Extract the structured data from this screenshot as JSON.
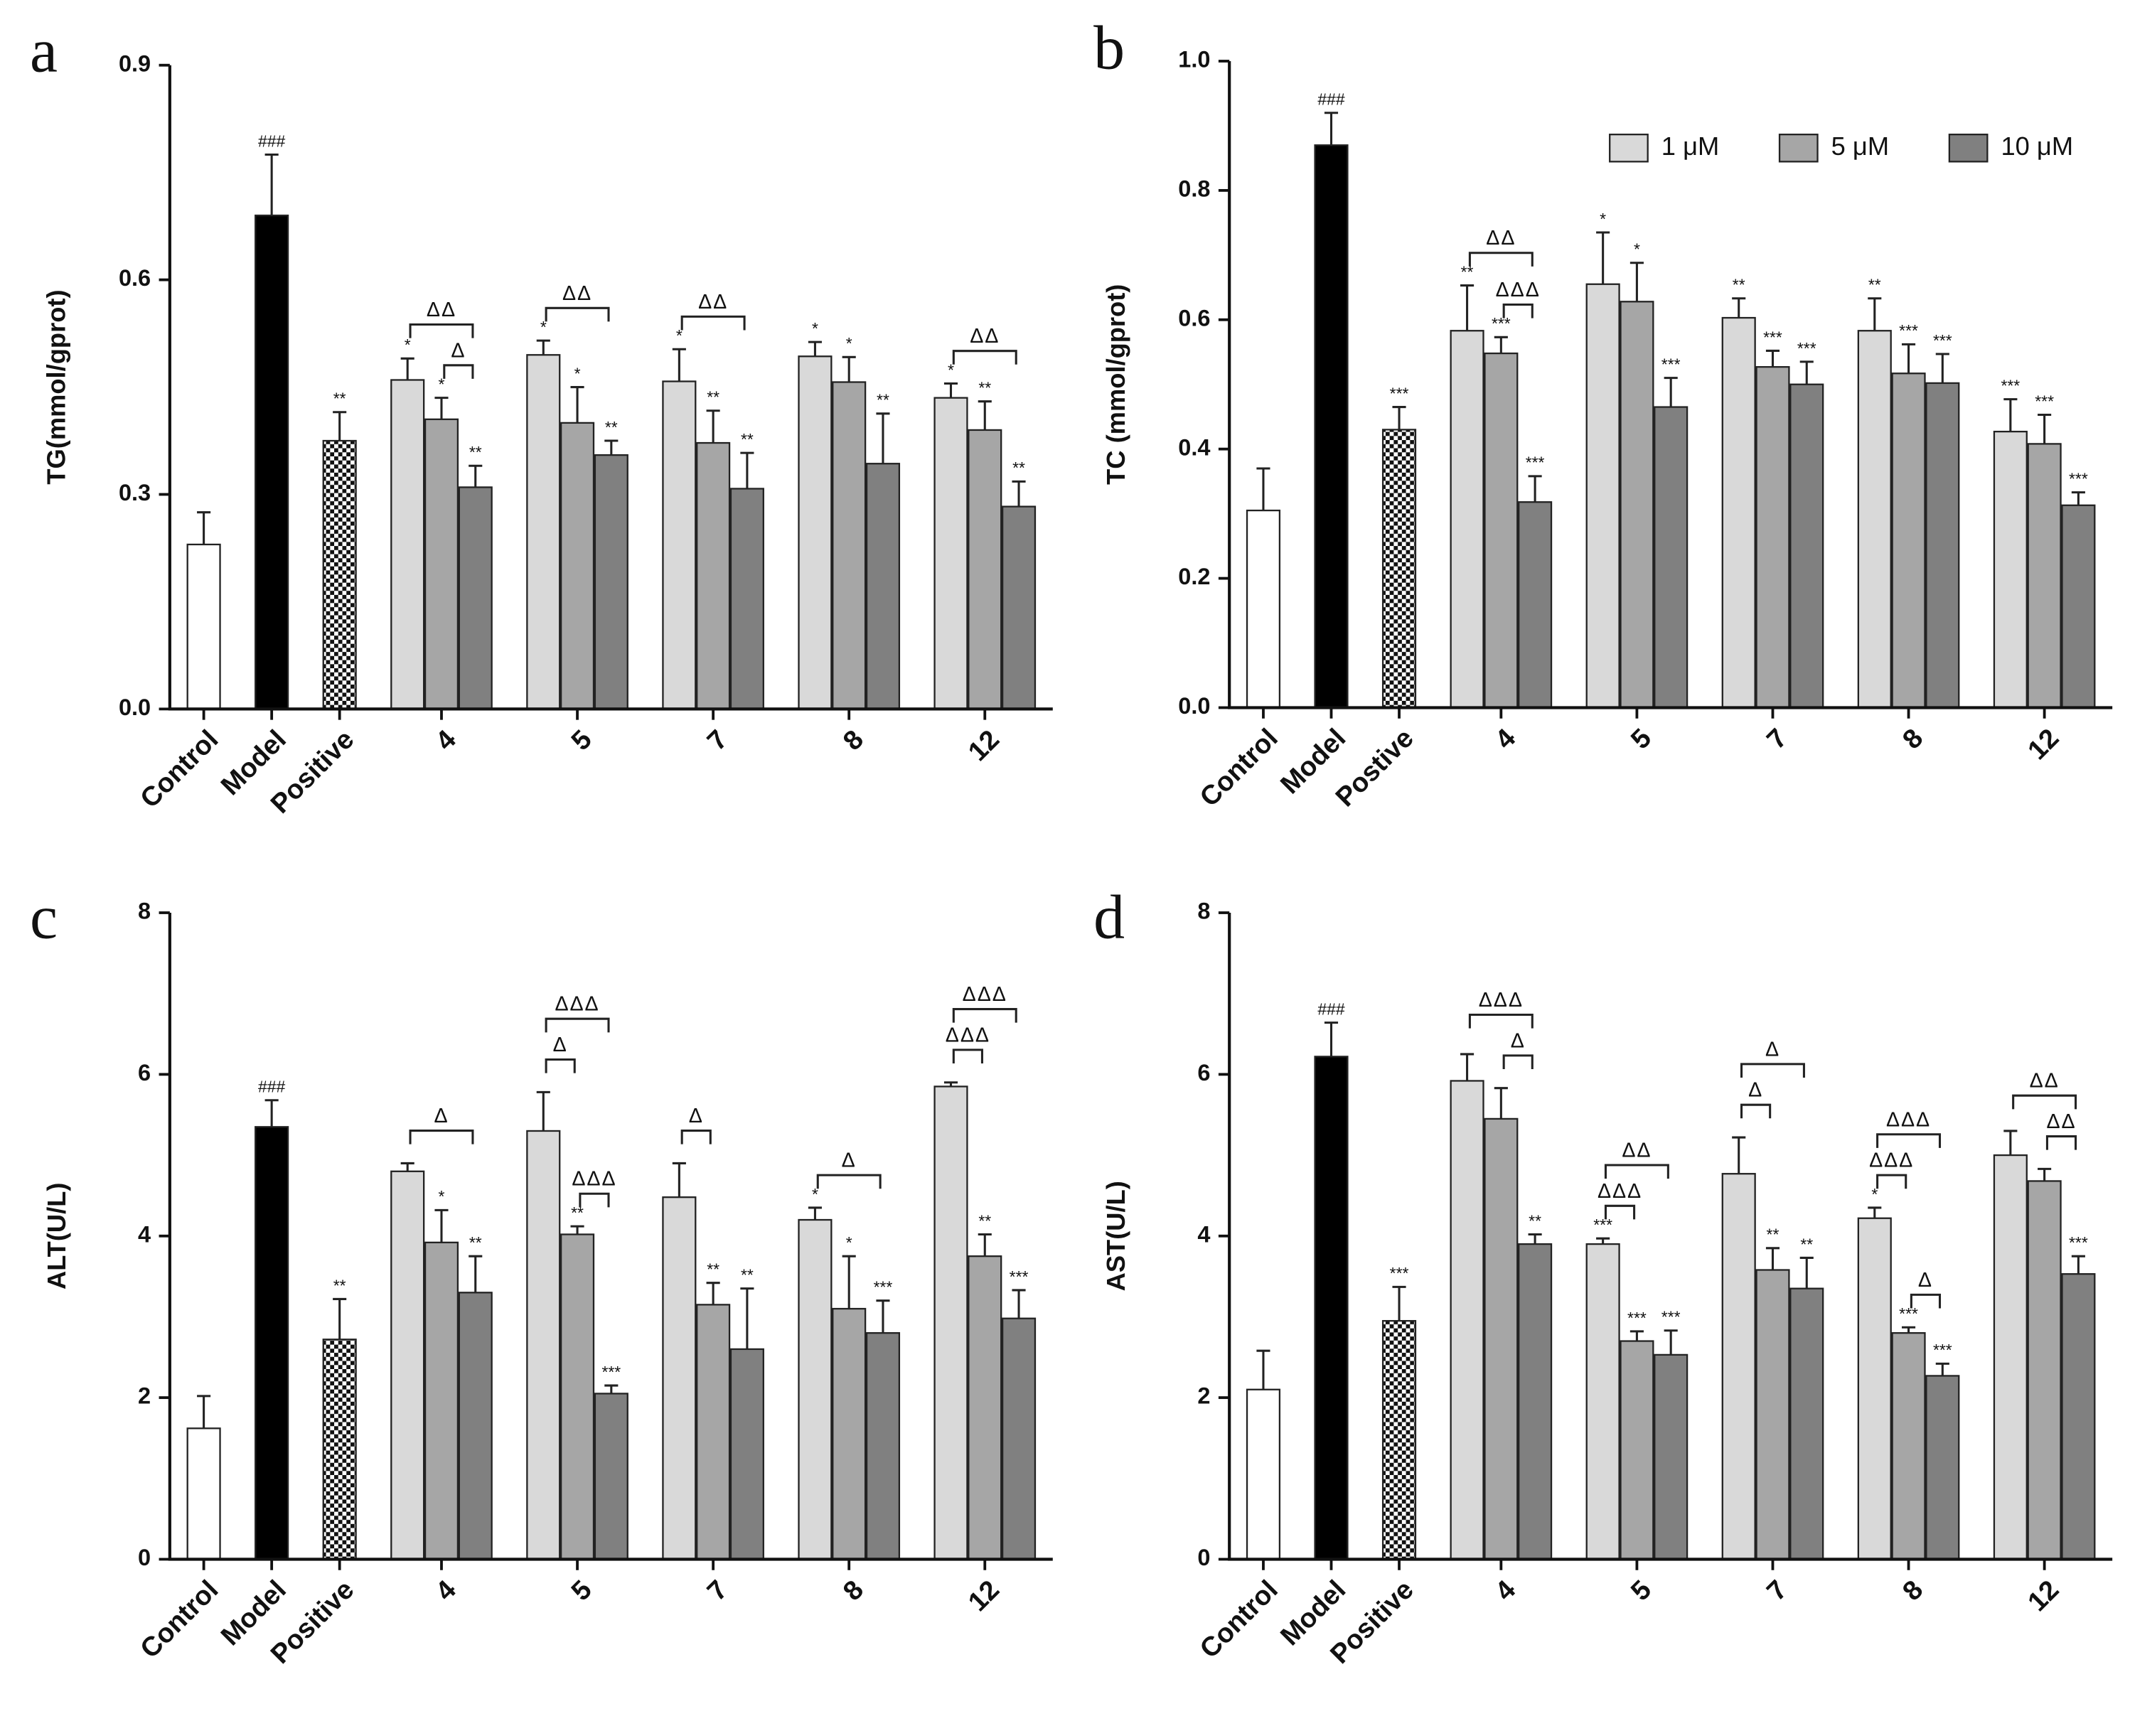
{
  "chart_data": [
    {
      "type": "bar",
      "panel_label": "a",
      "ylabel": "TG(mmol/gprot)",
      "ylim": [
        0,
        0.9
      ],
      "yticks": [
        {
          "value": 0,
          "label": "0.0"
        },
        0.3,
        0.6,
        0.9
      ],
      "categories": [
        "Control",
        "Model",
        "Positive",
        "4",
        "5",
        "7",
        "8",
        "12"
      ],
      "values": [
        0.23,
        0.69,
        0.375,
        null,
        null,
        null,
        null,
        null
      ],
      "errors": [
        0.045,
        0.085,
        0.04,
        null,
        null,
        null,
        null,
        null
      ],
      "annotations": [
        null,
        "###",
        "**",
        null,
        null,
        null,
        null,
        null
      ],
      "colors": [
        "#ffffff",
        "#000000",
        "checker",
        null,
        null,
        null,
        null,
        null
      ],
      "series": [
        {
          "name": "1 μM",
          "color": "#d9d9d9",
          "values": [
            null,
            null,
            null,
            0.46,
            0.495,
            0.458,
            0.493,
            0.435
          ],
          "errors": [
            null,
            null,
            null,
            0.03,
            0.02,
            0.045,
            0.02,
            0.02
          ],
          "annotations": [
            null,
            null,
            null,
            "*",
            "*",
            "*",
            "*",
            "*"
          ]
        },
        {
          "name": "5 μM",
          "color": "#a6a6a6",
          "values": [
            null,
            null,
            null,
            0.405,
            0.4,
            0.372,
            0.457,
            0.39
          ],
          "errors": [
            null,
            null,
            null,
            0.03,
            0.05,
            0.045,
            0.035,
            0.04
          ],
          "annotations": [
            null,
            null,
            null,
            "*",
            "*",
            "**",
            "*",
            "**"
          ]
        },
        {
          "name": "10 μM",
          "color": "#808080",
          "values": [
            null,
            null,
            null,
            0.31,
            0.355,
            0.308,
            0.343,
            0.283
          ],
          "errors": [
            null,
            null,
            null,
            0.03,
            0.02,
            0.05,
            0.07,
            0.035
          ],
          "annotations": [
            null,
            null,
            null,
            "**",
            "**",
            "**",
            "**",
            "**"
          ]
        }
      ],
      "brackets": [
        {
          "category": "4",
          "from": "5 μM",
          "to": "10 μM",
          "label": "Δ"
        },
        {
          "category": "4",
          "from": "1 μM",
          "to": "10 μM",
          "label": "ΔΔ"
        },
        {
          "category": "5",
          "from": "1 μM",
          "to": "10 μM",
          "label": "ΔΔ"
        },
        {
          "category": "7",
          "from": "1 μM",
          "to": "10 μM",
          "label": "ΔΔ"
        },
        {
          "category": "12",
          "from": "1 μM",
          "to": "10 μM",
          "label": "ΔΔ"
        }
      ]
    },
    {
      "type": "bar",
      "panel_label": "b",
      "ylabel": "TC (mmol/gprot)",
      "ylim": [
        0,
        1.0
      ],
      "yticks": [
        {
          "value": 0,
          "label": "0.0"
        },
        0.2,
        0.4,
        0.6,
        0.8,
        {
          "value": 1.0,
          "label": "1.0"
        }
      ],
      "legend": "top-right",
      "categories": [
        "Control",
        "Model",
        "Postive",
        "4",
        "5",
        "7",
        "8",
        "12"
      ],
      "values": [
        0.305,
        0.87,
        0.43,
        null,
        null,
        null,
        null,
        null
      ],
      "errors": [
        0.065,
        0.05,
        0.035,
        null,
        null,
        null,
        null,
        null
      ],
      "annotations": [
        null,
        "###",
        "***",
        null,
        null,
        null,
        null,
        null
      ],
      "colors": [
        "#ffffff",
        "#000000",
        "checker",
        null,
        null,
        null,
        null,
        null
      ],
      "series": [
        {
          "name": "1 μM",
          "color": "#d9d9d9",
          "values": [
            null,
            null,
            null,
            0.583,
            0.655,
            0.603,
            0.583,
            0.427
          ],
          "errors": [
            null,
            null,
            null,
            0.07,
            0.08,
            0.03,
            0.05,
            0.05
          ],
          "annotations": [
            null,
            null,
            null,
            "**",
            "*",
            "**",
            "**",
            "***"
          ]
        },
        {
          "name": "5 μM",
          "color": "#a6a6a6",
          "values": [
            null,
            null,
            null,
            0.548,
            0.628,
            0.527,
            0.517,
            0.408
          ],
          "errors": [
            null,
            null,
            null,
            0.025,
            0.06,
            0.025,
            0.045,
            0.045
          ],
          "annotations": [
            null,
            null,
            null,
            "***",
            "*",
            "***",
            "***",
            "***"
          ]
        },
        {
          "name": "10 μM",
          "color": "#808080",
          "values": [
            null,
            null,
            null,
            0.318,
            0.465,
            0.5,
            0.502,
            0.313
          ],
          "errors": [
            null,
            null,
            null,
            0.04,
            0.045,
            0.035,
            0.045,
            0.02
          ],
          "annotations": [
            null,
            null,
            null,
            "***",
            "***",
            "***",
            "***",
            "***"
          ]
        }
      ],
      "brackets": [
        {
          "category": "4",
          "from": "5 μM",
          "to": "10 μM",
          "label": "ΔΔΔ"
        },
        {
          "category": "4",
          "from": "1 μM",
          "to": "10 μM",
          "label": "ΔΔ"
        }
      ]
    },
    {
      "type": "bar",
      "panel_label": "c",
      "ylabel": "ALT(U/L)",
      "ylim": [
        0,
        8
      ],
      "yticks": [
        0,
        2,
        4,
        6,
        8
      ],
      "categories": [
        "Control",
        "Model",
        "Positive",
        "4",
        "5",
        "7",
        "8",
        "12"
      ],
      "values": [
        1.62,
        5.35,
        2.72,
        null,
        null,
        null,
        null,
        null
      ],
      "errors": [
        0.4,
        0.33,
        0.5,
        null,
        null,
        null,
        null,
        null
      ],
      "annotations": [
        null,
        "###",
        "**",
        null,
        null,
        null,
        null,
        null
      ],
      "colors": [
        "#ffffff",
        "#000000",
        "checker",
        null,
        null,
        null,
        null,
        null
      ],
      "series": [
        {
          "name": "1 μM",
          "color": "#d9d9d9",
          "values": [
            null,
            null,
            null,
            4.8,
            5.3,
            4.48,
            4.2,
            5.85
          ],
          "errors": [
            null,
            null,
            null,
            0.1,
            0.48,
            0.42,
            0.15,
            0.05
          ],
          "annotations": [
            null,
            null,
            null,
            null,
            null,
            null,
            "*",
            null
          ]
        },
        {
          "name": "5 μM",
          "color": "#a6a6a6",
          "values": [
            null,
            null,
            null,
            3.92,
            4.02,
            3.15,
            3.1,
            3.75
          ],
          "errors": [
            null,
            null,
            null,
            0.4,
            0.1,
            0.27,
            0.65,
            0.27
          ],
          "annotations": [
            null,
            null,
            null,
            "*",
            "**",
            "**",
            "*",
            "**"
          ]
        },
        {
          "name": "10 μM",
          "color": "#808080",
          "values": [
            null,
            null,
            null,
            3.3,
            2.05,
            2.6,
            2.8,
            2.98
          ],
          "errors": [
            null,
            null,
            null,
            0.45,
            0.1,
            0.75,
            0.4,
            0.35
          ],
          "annotations": [
            null,
            null,
            null,
            "**",
            "***",
            "**",
            "***",
            "***"
          ]
        }
      ],
      "brackets": [
        {
          "category": "4",
          "from": "1 μM",
          "to": "10 μM",
          "label": "Δ"
        },
        {
          "category": "5",
          "from": "5 μM",
          "to": "10 μM",
          "label": "ΔΔΔ"
        },
        {
          "category": "5",
          "from": "1 μM",
          "to": "5 μM",
          "label": "Δ"
        },
        {
          "category": "5",
          "from": "1 μM",
          "to": "10 μM",
          "label": "ΔΔΔ"
        },
        {
          "category": "7",
          "from": "1 μM",
          "to": "5 μM",
          "label": "Δ"
        },
        {
          "category": "8",
          "from": "1 μM",
          "to": "10 μM",
          "label": "Δ"
        },
        {
          "category": "12",
          "from": "1 μM",
          "to": "5 μM",
          "label": "ΔΔΔ"
        },
        {
          "category": "12",
          "from": "1 μM",
          "to": "10 μM",
          "label": "ΔΔΔ"
        }
      ]
    },
    {
      "type": "bar",
      "panel_label": "d",
      "ylabel": "AST(U/L)",
      "ylim": [
        0,
        8
      ],
      "yticks": [
        0,
        2,
        4,
        6,
        8
      ],
      "categories": [
        "Control",
        "Model",
        "Positive",
        "4",
        "5",
        "7",
        "8",
        "12"
      ],
      "values": [
        2.1,
        6.22,
        2.95,
        null,
        null,
        null,
        null,
        null
      ],
      "errors": [
        0.48,
        0.42,
        0.42,
        null,
        null,
        null,
        null,
        null
      ],
      "annotations": [
        null,
        "###",
        "***",
        null,
        null,
        null,
        null,
        null
      ],
      "colors": [
        "#ffffff",
        "#000000",
        "checker",
        null,
        null,
        null,
        null,
        null
      ],
      "series": [
        {
          "name": "1 μM",
          "color": "#d9d9d9",
          "values": [
            null,
            null,
            null,
            5.92,
            3.9,
            4.77,
            4.22,
            5.0
          ],
          "errors": [
            null,
            null,
            null,
            0.33,
            0.07,
            0.45,
            0.13,
            0.3
          ],
          "annotations": [
            null,
            null,
            null,
            null,
            "***",
            null,
            "*",
            null
          ]
        },
        {
          "name": "5 μM",
          "color": "#a6a6a6",
          "values": [
            null,
            null,
            null,
            5.45,
            2.7,
            3.58,
            2.8,
            4.68
          ],
          "errors": [
            null,
            null,
            null,
            0.38,
            0.12,
            0.27,
            0.07,
            0.15
          ],
          "annotations": [
            null,
            null,
            null,
            null,
            "***",
            "**",
            "***",
            null
          ]
        },
        {
          "name": "10 μM",
          "color": "#808080",
          "values": [
            null,
            null,
            null,
            3.9,
            2.53,
            3.35,
            2.27,
            3.53
          ],
          "errors": [
            null,
            null,
            null,
            0.12,
            0.3,
            0.38,
            0.15,
            0.22
          ],
          "annotations": [
            null,
            null,
            null,
            "**",
            "***",
            "**",
            "***",
            "***"
          ]
        }
      ],
      "brackets": [
        {
          "category": "4",
          "from": "5 μM",
          "to": "10 μM",
          "label": "Δ"
        },
        {
          "category": "4",
          "from": "1 μM",
          "to": "10 μM",
          "label": "ΔΔΔ"
        },
        {
          "category": "5",
          "from": "1 μM",
          "to": "5 μM",
          "label": "ΔΔΔ"
        },
        {
          "category": "5",
          "from": "1 μM",
          "to": "10 μM",
          "label": "ΔΔ"
        },
        {
          "category": "7",
          "from": "1 μM",
          "to": "5 μM",
          "label": "Δ"
        },
        {
          "category": "7",
          "from": "1 μM",
          "to": "10 μM",
          "label": "Δ"
        },
        {
          "category": "8",
          "from": "1 μM",
          "to": "5 μM",
          "label": "ΔΔΔ"
        },
        {
          "category": "8",
          "from": "5 μM",
          "to": "10 μM",
          "label": "Δ"
        },
        {
          "category": "8",
          "from": "1 μM",
          "to": "10 μM",
          "label": "ΔΔΔ"
        },
        {
          "category": "12",
          "from": "5 μM",
          "to": "10 μM",
          "label": "ΔΔ"
        },
        {
          "category": "12",
          "from": "1 μM",
          "to": "10 μM",
          "label": "ΔΔ"
        }
      ]
    }
  ]
}
